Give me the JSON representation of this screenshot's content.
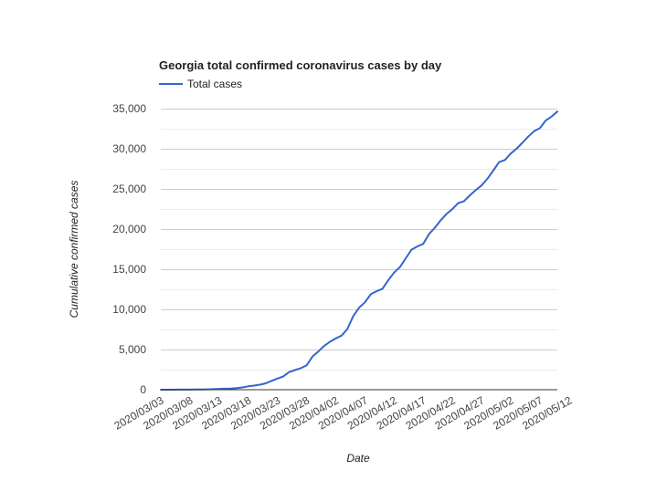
{
  "chart_data": {
    "type": "line",
    "title": "Georgia total confirmed coronavirus cases by day",
    "xlabel": "Date",
    "ylabel": "Cumulative confirmed cases",
    "ylim": [
      0,
      35000
    ],
    "y_ticks": [
      0,
      5000,
      10000,
      15000,
      20000,
      25000,
      30000,
      35000
    ],
    "y_tick_labels": [
      "0",
      "5,000",
      "10,000",
      "15,000",
      "20,000",
      "25,000",
      "30,000",
      "35,000"
    ],
    "x_tick_labels": [
      "2020/03/03",
      "2020/03/08",
      "2020/03/13",
      "2020/03/18",
      "2020/03/23",
      "2020/03/28",
      "2020/04/02",
      "2020/04/07",
      "2020/04/12",
      "2020/04/17",
      "2020/04/22",
      "2020/04/27",
      "2020/05/02",
      "2020/05/07",
      "2020/05/12"
    ],
    "legend_position": "top-left",
    "series": [
      {
        "name": "Total cases",
        "color": "#3366cc",
        "start_date": "2020/03/03",
        "values": [
          2,
          2,
          2,
          6,
          11,
          17,
          22,
          31,
          42,
          66,
          99,
          121,
          146,
          197,
          287,
          420,
          507,
          620,
          800,
          1097,
          1387,
          1643,
          2198,
          2446,
          2683,
          3032,
          4117,
          4748,
          5444,
          5967,
          6383,
          6742,
          7558,
          9156,
          10204,
          10885,
          11889,
          12261,
          12550,
          13621,
          14578,
          15260,
          16368,
          17432,
          17841,
          18158,
          19398,
          20166,
          21102,
          21883,
          22491,
          23222,
          23481,
          24200,
          24841,
          25431,
          26260,
          27270,
          28331,
          28602,
          29402,
          29998,
          30743,
          31509,
          32181,
          32563,
          33508,
          33999,
          34635
        ]
      }
    ]
  }
}
